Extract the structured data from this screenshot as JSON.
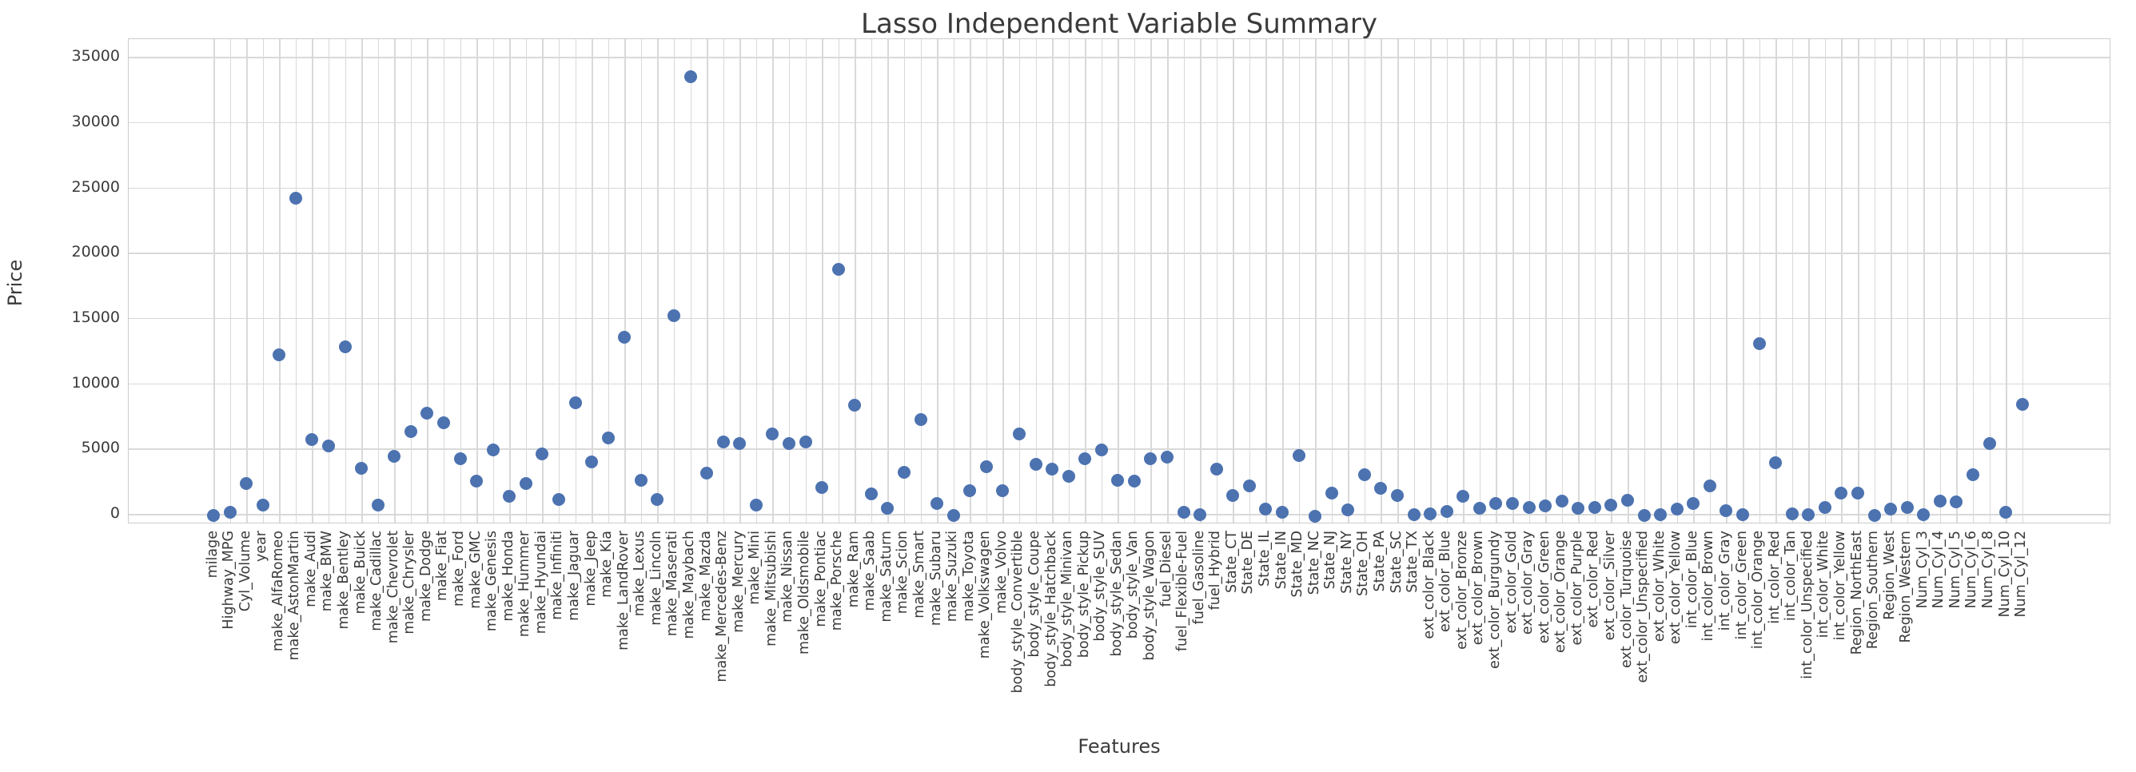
{
  "chart_data": {
    "type": "scatter",
    "title": "Lasso Independent Variable Summary",
    "xlabel": "Features",
    "ylabel": "Price",
    "legend": null,
    "grid": true,
    "yticks": [
      0,
      5000,
      10000,
      15000,
      20000,
      25000,
      30000,
      35000
    ],
    "ylim": [
      -800,
      36350
    ],
    "marker_color": "#4C72B0",
    "grid_color": "#d9d9d9",
    "spine_color": "#cccccc",
    "tick_text_color": "#3b3b3b",
    "title_color": "#3a3a3a",
    "features": [
      "milage",
      "Highway_MPG",
      "Cyl_Volume",
      "year",
      "make_AlfaRomeo",
      "make_AstonMartin",
      "make_Audi",
      "make_BMW",
      "make_Bentley",
      "make_Buick",
      "make_Cadillac",
      "make_Chevrolet",
      "make_Chrysler",
      "make_Dodge",
      "make_Fiat",
      "make_Ford",
      "make_GMC",
      "make_Genesis",
      "make_Honda",
      "make_Hummer",
      "make_Hyundai",
      "make_Infiniti",
      "make_Jaguar",
      "make_Jeep",
      "make_Kia",
      "make_LandRover",
      "make_Lexus",
      "make_Lincoln",
      "make_Maserati",
      "make_Maybach",
      "make_Mazda",
      "make_Mercedes-Benz",
      "make_Mercury",
      "make_Mini",
      "make_Mitsubishi",
      "make_Nissan",
      "make_Oldsmobile",
      "make_Pontiac",
      "make_Porsche",
      "make_Ram",
      "make_Saab",
      "make_Saturn",
      "make_Scion",
      "make_Smart",
      "make_Subaru",
      "make_Suzuki",
      "make_Toyota",
      "make_Volkswagen",
      "make_Volvo",
      "body_style_Convertible",
      "body_style_Coupe",
      "body_style_Hatchback",
      "body_style_Minivan",
      "body_style_Pickup",
      "body_style_SUV",
      "body_style_Sedan",
      "body_style_Van",
      "body_style_Wagon",
      "fuel_Diesel",
      "fuel_Flexible-Fuel",
      "fuel_Gasoline",
      "fuel_Hybrid",
      "State_CT",
      "State_DE",
      "State_IL",
      "State_IN",
      "State_MD",
      "State_NC",
      "State_NJ",
      "State_NY",
      "State_OH",
      "State_PA",
      "State_SC",
      "State_TX",
      "ext_color_Black",
      "ext_color_Blue",
      "ext_color_Bronze",
      "ext_color_Brown",
      "ext_color_Burgundy",
      "ext_color_Gold",
      "ext_color_Gray",
      "ext_color_Green",
      "ext_color_Orange",
      "ext_color_Purple",
      "ext_color_Red",
      "ext_color_Silver",
      "ext_color_Turquoise",
      "ext_color_Unspecified",
      "ext_color_White",
      "ext_color_Yellow",
      "int_color_Blue",
      "int_color_Brown",
      "int_color_Gray",
      "int_color_Green",
      "int_color_Orange",
      "int_color_Red",
      "int_color_Tan",
      "int_color_Unspecified",
      "int_color_White",
      "int_color_Yellow",
      "Region_NorthEast",
      "Region_Southern",
      "Region_West",
      "Region_Western",
      "Num_Cyl_3",
      "Num_Cyl_4",
      "Num_Cyl_5",
      "Num_Cyl_6",
      "Num_Cyl_8",
      "Num_Cyl_10",
      "Num_Cyl_12"
    ],
    "values": [
      -100,
      100,
      2300,
      700,
      12200,
      24200,
      5700,
      5200,
      12800,
      3500,
      700,
      4400,
      6300,
      7700,
      7000,
      4200,
      2500,
      4900,
      1350,
      2300,
      4600,
      1100,
      8500,
      4000,
      5800,
      13500,
      2600,
      1100,
      15200,
      33500,
      3100,
      5500,
      5400,
      700,
      6100,
      5400,
      5500,
      2000,
      18700,
      8300,
      1500,
      400,
      3200,
      7200,
      800,
      -100,
      1800,
      3600,
      1800,
      6100,
      3800,
      3400,
      2900,
      4200,
      4900,
      2600,
      2500,
      4200,
      4350,
      100,
      -50,
      3400,
      1400,
      2160,
      370,
      120,
      4450,
      -180,
      1590,
      290,
      3000,
      1960,
      1390,
      -80,
      0,
      200,
      1350,
      400,
      770,
      770,
      500,
      600,
      950,
      400,
      500,
      700,
      1070,
      -100,
      -50,
      370,
      775,
      2160,
      250,
      -80,
      13050,
      3900,
      0,
      -50,
      500,
      1590,
      1570,
      -100,
      350,
      470,
      -60,
      960,
      920,
      3000,
      5370,
      100,
      8400
    ]
  }
}
